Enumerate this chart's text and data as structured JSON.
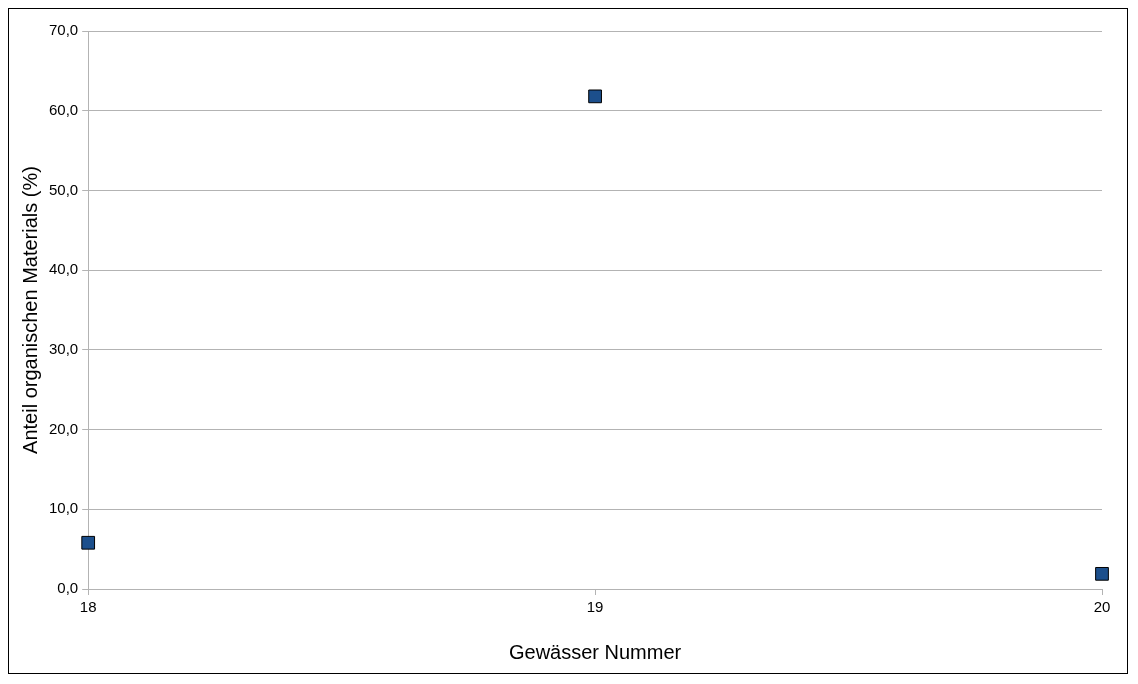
{
  "chart_data": {
    "type": "scatter",
    "xlabel": "Gewässer Nummer",
    "ylabel": "Anteil organischen Materials (%)",
    "x": [
      18,
      19,
      20
    ],
    "series": [
      {
        "color": "#1c4f8c",
        "values": [
          5.8,
          61.8,
          1.9
        ]
      }
    ],
    "xlim": [
      18,
      20
    ],
    "xticks": [
      18,
      19,
      20
    ],
    "ylim": [
      0,
      70
    ],
    "yticks": [
      {
        "value": 0,
        "label": "0,0"
      },
      {
        "value": 10,
        "label": "10,0"
      },
      {
        "value": 20,
        "label": "20,0"
      },
      {
        "value": 30,
        "label": "30,0"
      },
      {
        "value": 40,
        "label": "40,0"
      },
      {
        "value": 50,
        "label": "50,0"
      },
      {
        "value": 60,
        "label": "60,0"
      },
      {
        "value": 70,
        "label": "70,0"
      }
    ],
    "grid": "y",
    "legend": false,
    "marker": "square"
  }
}
